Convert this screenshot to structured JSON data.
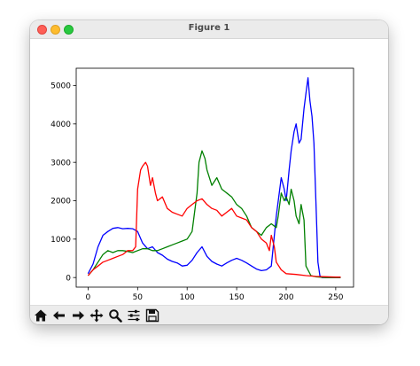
{
  "window": {
    "title": "Figure 1"
  },
  "toolbar": {
    "buttons": [
      {
        "name": "home-icon"
      },
      {
        "name": "back-arrow-icon"
      },
      {
        "name": "forward-arrow-icon"
      },
      {
        "name": "pan-move-icon"
      },
      {
        "name": "zoom-magnifier-icon"
      },
      {
        "name": "configure-subplots-icon"
      },
      {
        "name": "save-floppy-icon"
      }
    ]
  },
  "chart_data": {
    "type": "line",
    "title": "",
    "xlabel": "",
    "ylabel": "",
    "xlim": [
      -12,
      268
    ],
    "ylim": [
      -250,
      5450
    ],
    "xticks": [
      0,
      50,
      100,
      150,
      200,
      250
    ],
    "yticks": [
      0,
      1000,
      2000,
      3000,
      4000,
      5000
    ],
    "grid": false,
    "series": [
      {
        "color": "#0000ff",
        "x": [
          0,
          5,
          10,
          15,
          20,
          25,
          30,
          35,
          40,
          45,
          50,
          55,
          60,
          65,
          70,
          75,
          80,
          85,
          90,
          95,
          100,
          105,
          110,
          115,
          120,
          125,
          130,
          135,
          140,
          145,
          150,
          155,
          160,
          165,
          170,
          175,
          180,
          185,
          190,
          195,
          198,
          200,
          203,
          205,
          208,
          210,
          213,
          215,
          218,
          220,
          222,
          224,
          226,
          228,
          230,
          232,
          234,
          236,
          240,
          250,
          255
        ],
        "y": [
          100,
          350,
          800,
          1100,
          1200,
          1280,
          1300,
          1270,
          1280,
          1270,
          1200,
          900,
          750,
          800,
          650,
          580,
          480,
          420,
          380,
          300,
          320,
          450,
          650,
          800,
          550,
          420,
          350,
          300,
          380,
          450,
          500,
          450,
          380,
          300,
          220,
          180,
          200,
          300,
          1600,
          2600,
          2300,
          2000,
          2800,
          3300,
          3800,
          4000,
          3500,
          3600,
          4400,
          4800,
          5200,
          4600,
          4200,
          3500,
          2000,
          400,
          50,
          0,
          0,
          0,
          0
        ]
      },
      {
        "color": "#008000",
        "x": [
          0,
          5,
          10,
          15,
          20,
          25,
          30,
          35,
          40,
          45,
          50,
          55,
          60,
          65,
          70,
          75,
          80,
          85,
          90,
          95,
          100,
          105,
          110,
          112,
          115,
          118,
          120,
          125,
          130,
          135,
          140,
          145,
          150,
          155,
          160,
          165,
          170,
          175,
          180,
          185,
          190,
          192,
          195,
          198,
          200,
          203,
          205,
          208,
          210,
          213,
          215,
          218,
          220,
          225,
          230,
          240,
          250,
          255
        ],
        "y": [
          50,
          200,
          400,
          600,
          700,
          650,
          700,
          700,
          680,
          650,
          700,
          750,
          750,
          700,
          700,
          750,
          800,
          850,
          900,
          950,
          1000,
          1200,
          2200,
          3000,
          3300,
          3100,
          2800,
          2400,
          2600,
          2300,
          2200,
          2100,
          1900,
          1800,
          1600,
          1300,
          1200,
          1100,
          1300,
          1400,
          1300,
          1600,
          2200,
          2000,
          2100,
          1900,
          2300,
          2000,
          1600,
          1400,
          1900,
          1500,
          300,
          50,
          20,
          0,
          0,
          0
        ]
      },
      {
        "color": "#ff0000",
        "x": [
          0,
          5,
          10,
          15,
          20,
          25,
          30,
          35,
          40,
          45,
          48,
          50,
          53,
          55,
          58,
          60,
          63,
          65,
          68,
          70,
          75,
          80,
          85,
          90,
          95,
          100,
          105,
          110,
          115,
          120,
          125,
          130,
          135,
          140,
          145,
          150,
          155,
          160,
          165,
          170,
          175,
          180,
          183,
          185,
          188,
          190,
          195,
          200,
          210,
          220,
          230,
          240,
          250,
          255
        ],
        "y": [
          50,
          200,
          300,
          400,
          450,
          500,
          550,
          600,
          700,
          700,
          800,
          2300,
          2800,
          2900,
          3000,
          2900,
          2400,
          2600,
          2200,
          2000,
          2100,
          1800,
          1700,
          1650,
          1600,
          1800,
          1900,
          2000,
          2050,
          1900,
          1800,
          1750,
          1600,
          1700,
          1800,
          1600,
          1550,
          1500,
          1300,
          1200,
          1000,
          900,
          700,
          1100,
          800,
          400,
          200,
          100,
          80,
          50,
          30,
          20,
          10,
          10
        ]
      }
    ]
  }
}
